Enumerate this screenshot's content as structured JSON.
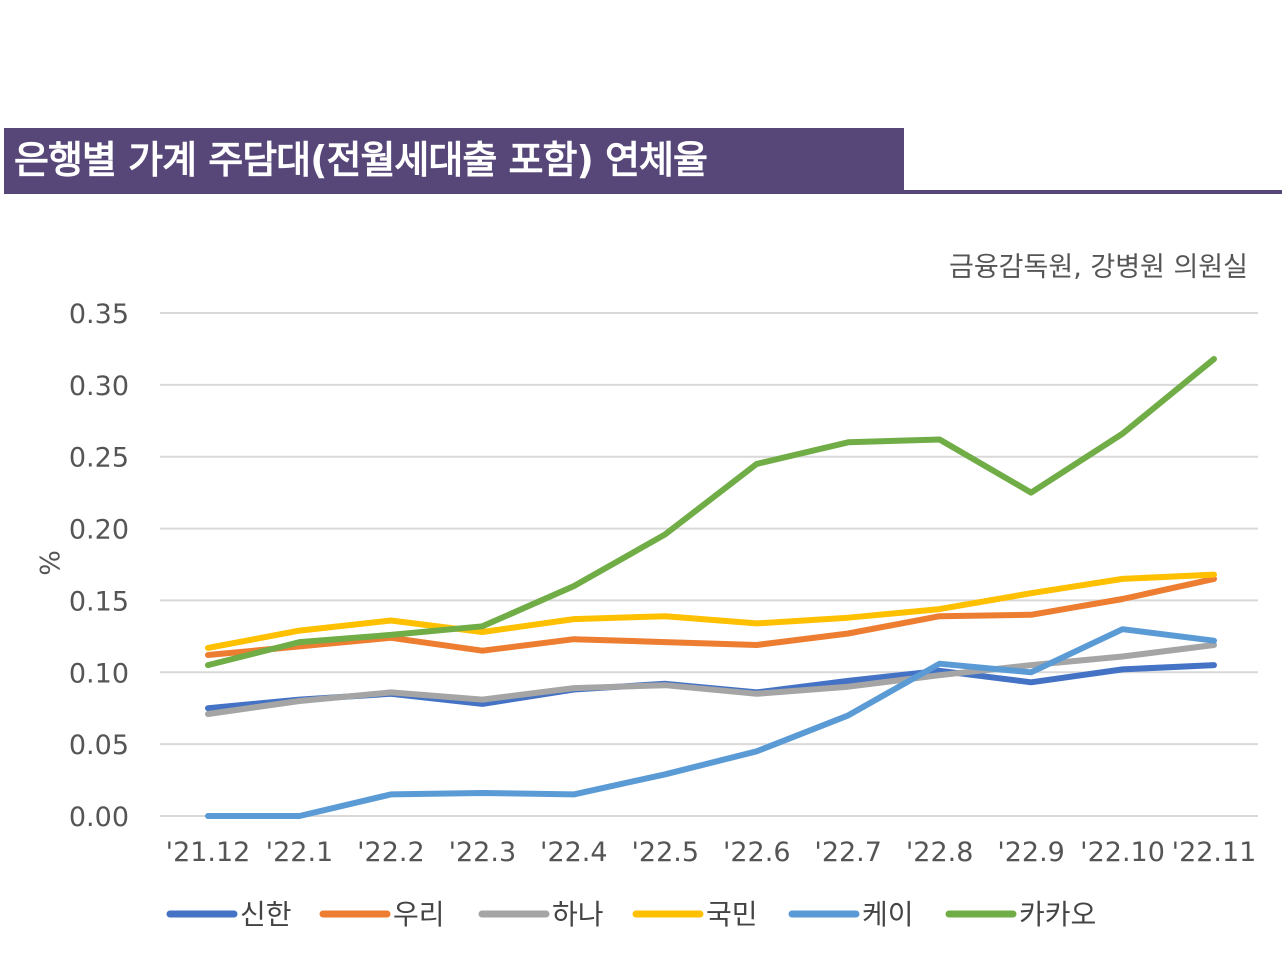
{
  "title": "은행별 가계 주담대(전월세대출 포함) 연체율",
  "source": "금융감독원, 강병원 의원실",
  "colors": {
    "title_bg": "#574779",
    "grid": "#d9d9d9"
  },
  "chart_data": {
    "type": "line",
    "ylabel": "%",
    "ylim": [
      0,
      0.35
    ],
    "yticks": [
      "0.00",
      "0.05",
      "0.10",
      "0.15",
      "0.20",
      "0.25",
      "0.30",
      "0.35"
    ],
    "categories": [
      "'21.12",
      "'22.1",
      "'22.2",
      "'22.3",
      "'22.4",
      "'22.5",
      "'22.6",
      "'22.7",
      "'22.8",
      "'22.9",
      "'22.10",
      "'22.11"
    ],
    "series": [
      {
        "name": "신한",
        "color": "#4472c4",
        "values": [
          0.075,
          0.081,
          0.085,
          0.078,
          0.088,
          0.092,
          0.086,
          0.094,
          0.101,
          0.093,
          0.102,
          0.105
        ]
      },
      {
        "name": "우리",
        "color": "#ed7d31",
        "values": [
          0.112,
          0.118,
          0.124,
          0.115,
          0.123,
          0.121,
          0.119,
          0.127,
          0.139,
          0.14,
          0.151,
          0.165
        ]
      },
      {
        "name": "하나",
        "color": "#a5a5a5",
        "values": [
          0.071,
          0.08,
          0.086,
          0.081,
          0.089,
          0.091,
          0.085,
          0.09,
          0.098,
          0.105,
          0.111,
          0.119
        ]
      },
      {
        "name": "국민",
        "color": "#ffc000",
        "values": [
          0.117,
          0.129,
          0.136,
          0.128,
          0.137,
          0.139,
          0.134,
          0.138,
          0.144,
          0.155,
          0.165,
          0.168
        ]
      },
      {
        "name": "케이",
        "color": "#5b9bd5",
        "values": [
          0.0,
          0.0,
          0.015,
          0.016,
          0.015,
          0.029,
          0.045,
          0.07,
          0.106,
          0.1,
          0.13,
          0.122
        ]
      },
      {
        "name": "카카오",
        "color": "#70ad47",
        "values": [
          0.105,
          0.121,
          0.126,
          0.132,
          0.16,
          0.196,
          0.245,
          0.26,
          0.262,
          0.225,
          0.266,
          0.318
        ]
      }
    ],
    "legend_position": "bottom"
  }
}
